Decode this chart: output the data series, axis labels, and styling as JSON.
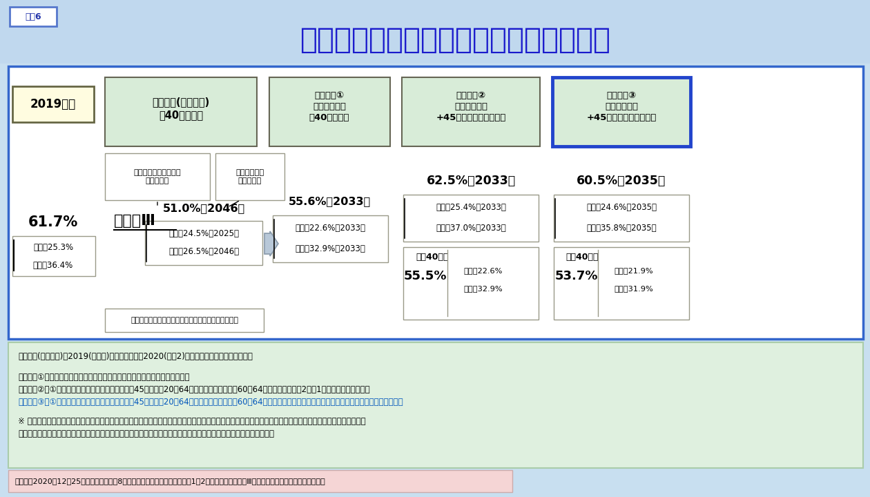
{
  "title": "所得代替率と給付水準調整期間の見通し",
  "title_label": "図表6",
  "title_bg": "#b8d4ee",
  "title_color": "#1a1aaa",
  "main_bg": "#ffffff",
  "outer_border_color": "#3366cc",
  "header_2019": "2019年度",
  "header_genkyo": "現行制度(法改正後)\n（40年加入）",
  "header_tsuika1": "追加試算①\n調整期間一致\n（40年加入）",
  "header_tsuika2": "追加試算②\n調整期間一致\n+45年加入（国庫あり）",
  "header_tsuika3": "追加試算③\n調整期間一致\n+45年加入（国庫なし）",
  "sub_label1": "給付水準調整終了後の\n所得代替率",
  "sub_label2": "給付水準調整\nの終了年度",
  "val_2019_main": "61.7%",
  "val_2019_hirei": "比例：25.3%",
  "val_2019_kiso": "基礎：36.4%",
  "case_label": "ケースⅢ",
  "val_genkyo_main": "51.0%（2046）",
  "val_genkyo_hirei": "比例：24.5%（2025）",
  "val_genkyo_kiso": "基礎：26.5%（2046）",
  "val_t1_main": "55.6%（2033）",
  "val_t1_hirei": "比例：22.6%（2033）",
  "val_t1_kiso": "基礎：32.9%（2033）",
  "val_t2_main": "62.5%（2033）",
  "val_t2_hirei": "比例：25.4%（2033）",
  "val_t2_kiso": "基礎：37.0%（2033）",
  "val_t2_sub_main": "55.5%",
  "val_t2_sub_label": "うち40年分",
  "val_t2_sub_hirei": "比例：22.6%",
  "val_t2_sub_kiso": "基礎：32.9%",
  "val_t3_main": "60.5%（2035）",
  "val_t3_hirei": "比例：24.6%（2035）",
  "val_t3_kiso": "基礎：35.8%（2035）",
  "val_t3_sub_main": "53.7%",
  "val_t3_sub_label": "うち40年分",
  "val_t3_sub_hirei": "比例：21.9%",
  "val_t3_sub_kiso": "基礎：31.9%",
  "note_text": "注：人口の前提は、中位推計（出生中位、死亡中位）",
  "footnote1": "現行制度(法改正後)：2019(令和元)年財政検証に、2020(令和2)年年金改正法を反映したもの。",
  "footnote2": "追加試算①：基礎・比例のマクロ経済スライドの調整期間を一致させた場合。",
  "footnote3": "追加試算②：①の調整期間一致に加え、基礎年金を45年加入（20〜64歳）とし、延長期間（60〜64歳）に係る給付に2分の1国庫負担がある場合。",
  "footnote4": "追加試算③：①の調整期間一致に加え、基礎年金を45年加入（20〜64歳）とし、延長期間（60〜64歳）に係る給付に国庫負担がなく、全て保険料財源で賄う場合。",
  "footnote5_1": "※ 基礎・比例のマクロ経済スライドの調整期間を一致させるために必要となる基礎年金拠出金の仕組みの見直しについては、具体的な前提をおいていないが、",
  "footnote5_2": "　どのように見直した場合でもマクロ経済スライドの調整期間を一致させた場合の給付と負担への影響は同じとなる。",
  "footnote_source": "【出典】2020年12月25日に開催された第8回社会保障審議会年金部会『資料1』2頁。筆者が〈ケースⅢ〉のみを取り出し、一部加工する。",
  "header_green_bg": "#d8ecd8",
  "yellow_bg": "#fffce0",
  "footnote_area_bg": "#e0f0e0",
  "pink_source_bg": "#f5d0d0",
  "footnote4_color": "#0055bb"
}
